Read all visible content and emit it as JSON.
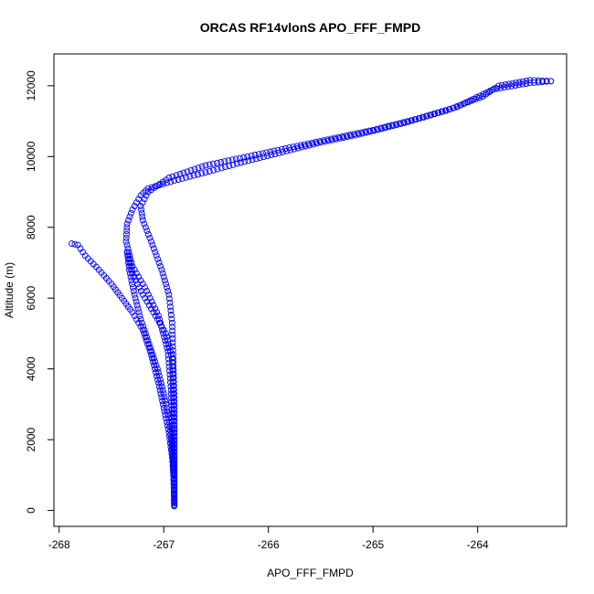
{
  "chart_data": {
    "type": "scatter",
    "title": "ORCAS RF14vlonS APO_FFF_FMPD",
    "xlabel": "APO_FFF_FMPD",
    "ylabel": "Altitude (m)",
    "xlim": [
      -268.05,
      -263.15
    ],
    "ylim": [
      -450,
      12900
    ],
    "xticks": [
      -268,
      -267,
      -266,
      -265,
      -264
    ],
    "yticks": [
      0,
      2000,
      4000,
      6000,
      8000,
      10000,
      12000
    ],
    "xtick_labels": [
      "-268",
      "-267",
      "-266",
      "-265",
      "-264"
    ],
    "ytick_labels": [
      "0",
      "2000",
      "4000",
      "6000",
      "8000",
      "10000",
      "12000"
    ],
    "grid": false,
    "marker": "open-circle",
    "color": "#0000ff",
    "series": [
      {
        "segments": [
          [
            [
              -267.88,
              7540
            ],
            [
              -267.82,
              7500
            ],
            [
              -267.75,
              7200
            ],
            [
              -267.62,
              6800
            ],
            [
              -267.5,
              6400
            ],
            [
              -267.4,
              6000
            ],
            [
              -267.3,
              5600
            ],
            [
              -267.2,
              5100
            ],
            [
              -267.12,
              4400
            ],
            [
              -267.05,
              3600
            ],
            [
              -267.0,
              2900
            ],
            [
              -266.95,
              2200
            ],
            [
              -266.92,
              1500
            ],
            [
              -266.9,
              800
            ],
            [
              -266.9,
              150
            ]
          ],
          [
            [
              -266.9,
              150
            ],
            [
              -266.9,
              900
            ],
            [
              -266.92,
              1800
            ],
            [
              -266.95,
              2600
            ],
            [
              -267.0,
              3300
            ],
            [
              -267.06,
              4000
            ],
            [
              -267.14,
              4700
            ],
            [
              -267.22,
              5400
            ],
            [
              -267.28,
              6100
            ],
            [
              -267.33,
              6800
            ],
            [
              -267.35,
              7300
            ]
          ],
          [
            [
              -267.35,
              7300
            ],
            [
              -267.3,
              6700
            ],
            [
              -267.2,
              6100
            ],
            [
              -267.08,
              5500
            ],
            [
              -266.98,
              5000
            ],
            [
              -266.92,
              4300
            ],
            [
              -266.91,
              3400
            ],
            [
              -266.9,
              2400
            ],
            [
              -266.9,
              1200
            ],
            [
              -266.9,
              200
            ]
          ],
          [
            [
              -266.9,
              200
            ],
            [
              -266.91,
              1200
            ],
            [
              -266.92,
              2300
            ],
            [
              -266.93,
              3400
            ],
            [
              -266.96,
              4500
            ],
            [
              -267.05,
              5500
            ],
            [
              -267.18,
              6300
            ],
            [
              -267.3,
              6900
            ],
            [
              -267.36,
              7600
            ],
            [
              -267.35,
              8100
            ],
            [
              -267.3,
              8500
            ],
            [
              -267.22,
              8900
            ],
            [
              -267.15,
              9100
            ],
            [
              -266.9,
              9320
            ],
            [
              -266.6,
              9550
            ],
            [
              -266.3,
              9800
            ],
            [
              -265.9,
              10100
            ],
            [
              -265.5,
              10400
            ],
            [
              -265.1,
              10650
            ],
            [
              -264.7,
              10950
            ],
            [
              -264.3,
              11300
            ],
            [
              -263.95,
              11700
            ],
            [
              -263.8,
              12000
            ],
            [
              -263.6,
              12100
            ],
            [
              -263.5,
              12160
            ],
            [
              -263.3,
              12130
            ]
          ],
          [
            [
              -263.3,
              12130
            ],
            [
              -263.5,
              12080
            ],
            [
              -263.85,
              11900
            ],
            [
              -264.2,
              11400
            ],
            [
              -264.6,
              11050
            ],
            [
              -265.0,
              10750
            ],
            [
              -265.4,
              10500
            ],
            [
              -265.8,
              10250
            ],
            [
              -266.2,
              10000
            ],
            [
              -266.6,
              9750
            ],
            [
              -266.95,
              9400
            ],
            [
              -267.15,
              9000
            ],
            [
              -267.22,
              8600
            ],
            [
              -267.2,
              8200
            ],
            [
              -267.12,
              7600
            ],
            [
              -267.02,
              6800
            ],
            [
              -266.95,
              6100
            ],
            [
              -266.92,
              5300
            ],
            [
              -266.91,
              4300
            ],
            [
              -266.9,
              3200
            ],
            [
              -266.9,
              2000
            ],
            [
              -266.9,
              900
            ],
            [
              -266.9,
              120
            ]
          ]
        ]
      }
    ]
  }
}
